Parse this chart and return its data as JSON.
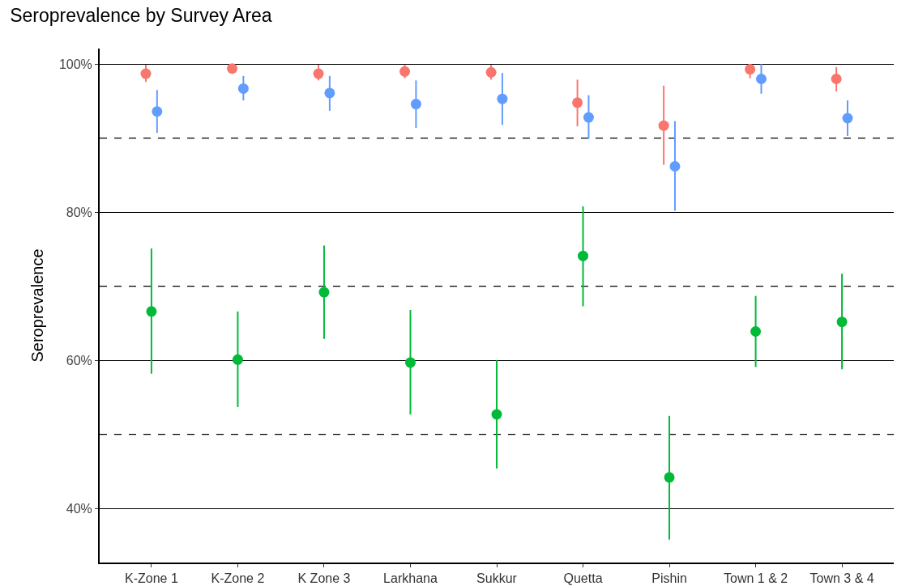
{
  "chart_data": {
    "type": "scatter",
    "title": "Seroprevalence by Survey Area",
    "ylabel": "Seroprevalence",
    "categories": [
      "K-Zone 1",
      "K-Zone 2",
      "K Zone 3",
      "Larkhana",
      "Sukkur",
      "Quetta",
      "Pishin",
      "Town 1 & 2",
      "Town 3 & 4"
    ],
    "series": [
      {
        "color": "#f8766d",
        "values": [
          98.7,
          99.4,
          98.7,
          99.0,
          98.9,
          94.8,
          91.7,
          99.3,
          98.0
        ],
        "errors": [
          [
            97.6,
            99.9
          ],
          null,
          [
            97.8,
            99.9
          ],
          [
            98.1,
            99.9
          ],
          [
            97.9,
            99.9
          ],
          [
            91.6,
            97.9
          ],
          [
            86.4,
            97.1
          ],
          [
            98.1,
            100
          ],
          [
            96.3,
            99.6
          ]
        ]
      },
      {
        "color": "#00ba38",
        "values": [
          66.6,
          60.1,
          69.2,
          59.7,
          52.7,
          74.1,
          44.2,
          63.9,
          65.2
        ],
        "errors": [
          [
            58.2,
            75.1
          ],
          [
            53.7,
            66.6
          ],
          [
            62.9,
            75.5
          ],
          [
            52.7,
            66.8
          ],
          [
            45.4,
            60.0
          ],
          [
            67.3,
            80.8
          ],
          [
            35.8,
            52.5
          ],
          [
            59.1,
            68.7
          ],
          [
            58.8,
            71.7
          ]
        ]
      },
      {
        "color": "#619cff",
        "values": [
          93.6,
          96.7,
          96.1,
          94.6,
          95.3,
          92.8,
          86.2,
          98.0,
          92.7
        ],
        "errors": [
          [
            90.7,
            96.5
          ],
          [
            95.1,
            98.4
          ],
          [
            93.7,
            98.4
          ],
          [
            91.4,
            97.8
          ],
          [
            91.8,
            98.8
          ],
          [
            89.9,
            95.8
          ],
          [
            80.2,
            92.3
          ],
          [
            96.0,
            100
          ],
          [
            90.3,
            95.1
          ]
        ]
      }
    ],
    "ylim": [
      32.7,
      102.1
    ],
    "yticks": [
      {
        "value": 40,
        "label": "40%"
      },
      {
        "value": 60,
        "label": "60%"
      },
      {
        "value": 80,
        "label": "80%"
      },
      {
        "value": 100,
        "label": "100%"
      }
    ],
    "grid": "y",
    "marker": "circle",
    "ref_lines": [
      {
        "axis": "y",
        "value": 50,
        "line_style": "dashed",
        "color": "#000000"
      },
      {
        "axis": "y",
        "value": 70,
        "line_style": "dashed",
        "color": "#000000"
      },
      {
        "axis": "y",
        "value": 90,
        "line_style": "dashed",
        "color": "#000000"
      }
    ]
  }
}
